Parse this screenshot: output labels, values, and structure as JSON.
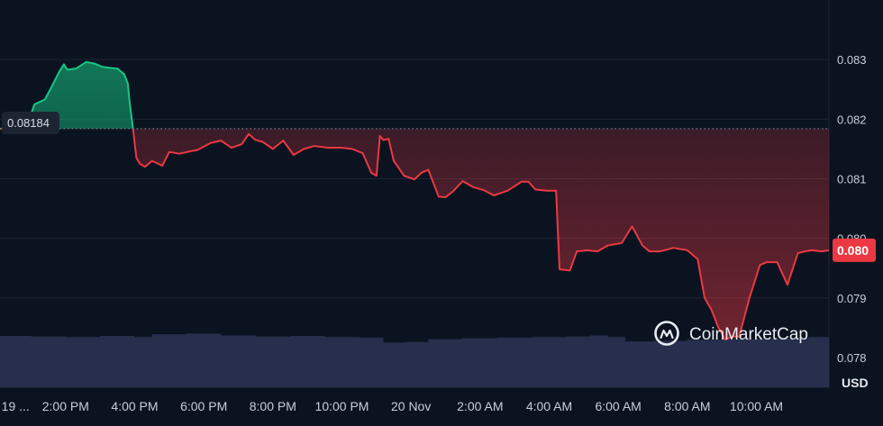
{
  "chart_data": {
    "type": "area",
    "reference_price": 0.08184,
    "reference_label": "0.08184",
    "current_price_label": "0.080",
    "unit_label": "USD",
    "brand": "CoinMarketCap",
    "ylim": [
      0.0775,
      0.084
    ],
    "y_ticks": [
      0.083,
      0.082,
      0.081,
      0.08,
      0.079,
      0.078
    ],
    "y_tick_labels": [
      "0.083",
      "0.082",
      "0.081",
      "0.080",
      "0.079",
      "0.078"
    ],
    "x_range_hours": [
      12.1,
      36.1
    ],
    "x_ticks": [
      {
        "label": "19 ...",
        "t": 12.55
      },
      {
        "label": "2:00 PM",
        "t": 14
      },
      {
        "label": "4:00 PM",
        "t": 16
      },
      {
        "label": "6:00 PM",
        "t": 18
      },
      {
        "label": "8:00 PM",
        "t": 20
      },
      {
        "label": "10:00 PM",
        "t": 22
      },
      {
        "label": "20 Nov",
        "t": 24
      },
      {
        "label": "2:00 AM",
        "t": 26
      },
      {
        "label": "4:00 AM",
        "t": 28
      },
      {
        "label": "6:00 AM",
        "t": 30
      },
      {
        "label": "8:00 AM",
        "t": 32
      },
      {
        "label": "10:00 AM",
        "t": 34
      }
    ],
    "price": {
      "t": [
        12.1,
        12.85,
        13.1,
        13.4,
        13.6,
        13.8,
        13.95,
        14.05,
        14.3,
        14.6,
        14.85,
        15.05,
        15.3,
        15.5,
        15.7,
        15.8,
        15.85,
        15.95,
        16.05,
        16.15,
        16.3,
        16.5,
        16.8,
        17.0,
        17.3,
        17.6,
        17.8,
        18.2,
        18.5,
        18.8,
        19.1,
        19.3,
        19.5,
        19.7,
        20.0,
        20.3,
        20.6,
        20.9,
        21.2,
        21.6,
        22.0,
        22.3,
        22.6,
        22.85,
        23.0,
        23.1,
        23.2,
        23.35,
        23.5,
        23.8,
        24.1,
        24.3,
        24.5,
        24.8,
        25.0,
        25.2,
        25.5,
        25.8,
        26.1,
        26.4,
        26.8,
        27.2,
        27.4,
        27.6,
        27.9,
        28.2,
        28.3,
        28.6,
        28.8,
        29.1,
        29.4,
        29.7,
        30.1,
        30.4,
        30.7,
        30.9,
        31.2,
        31.6,
        32.0,
        32.3,
        32.5,
        32.7,
        32.9,
        33.1,
        33.3,
        33.5,
        33.8,
        34.1,
        34.3,
        34.6,
        34.9,
        35.2,
        35.4,
        35.6,
        35.9,
        36.1
      ],
      "y": [
        0.08184,
        0.08185,
        0.08225,
        0.08233,
        0.08255,
        0.08278,
        0.08292,
        0.08283,
        0.08285,
        0.08296,
        0.08293,
        0.08288,
        0.08286,
        0.08285,
        0.08275,
        0.0826,
        0.0823,
        0.08184,
        0.08135,
        0.08125,
        0.0812,
        0.0813,
        0.08122,
        0.08145,
        0.08142,
        0.08146,
        0.08148,
        0.0816,
        0.08164,
        0.08152,
        0.08158,
        0.08175,
        0.08165,
        0.08162,
        0.0815,
        0.08164,
        0.0814,
        0.0815,
        0.08155,
        0.08152,
        0.08152,
        0.0815,
        0.08143,
        0.0811,
        0.08105,
        0.08172,
        0.08165,
        0.08167,
        0.0813,
        0.08105,
        0.08099,
        0.0811,
        0.08115,
        0.0807,
        0.08069,
        0.08078,
        0.08096,
        0.08086,
        0.08081,
        0.08072,
        0.0808,
        0.08095,
        0.08095,
        0.08082,
        0.0808,
        0.0808,
        0.07948,
        0.07946,
        0.07978,
        0.0798,
        0.07978,
        0.07988,
        0.07992,
        0.0802,
        0.07988,
        0.07978,
        0.07978,
        0.07984,
        0.0798,
        0.07965,
        0.079,
        0.0788,
        0.0785,
        0.0783,
        0.07835,
        0.07835,
        0.079,
        0.07955,
        0.0796,
        0.0796,
        0.07922,
        0.07975,
        0.07978,
        0.0798,
        0.07978,
        0.0798
      ]
    },
    "volume_ylim": [
      0,
      1
    ],
    "volume": {
      "t": [
        12.1,
        13.0,
        14.0,
        15.0,
        16.0,
        16.5,
        17.5,
        18.5,
        19.5,
        20.5,
        21.5,
        22.5,
        23.2,
        23.8,
        24.5,
        25.5,
        26.5,
        27.5,
        28.5,
        29.2,
        29.7,
        30.2,
        31.0,
        32.0,
        33.0,
        34.0,
        35.0,
        35.5,
        36.1
      ],
      "v": [
        0.92,
        0.91,
        0.9,
        0.92,
        0.9,
        0.95,
        0.96,
        0.93,
        0.91,
        0.92,
        0.9,
        0.89,
        0.8,
        0.81,
        0.86,
        0.88,
        0.89,
        0.9,
        0.91,
        0.93,
        0.9,
        0.82,
        0.83,
        0.85,
        0.86,
        0.87,
        0.88,
        0.9,
        0.88
      ]
    },
    "colors": {
      "background": "#0b1320",
      "grid": "#1e2633",
      "up_line": "#16c784",
      "down_line": "#ea3943",
      "badge": "#ea3943",
      "volume": "#2a3352",
      "reference_line": "#8a919c"
    }
  }
}
